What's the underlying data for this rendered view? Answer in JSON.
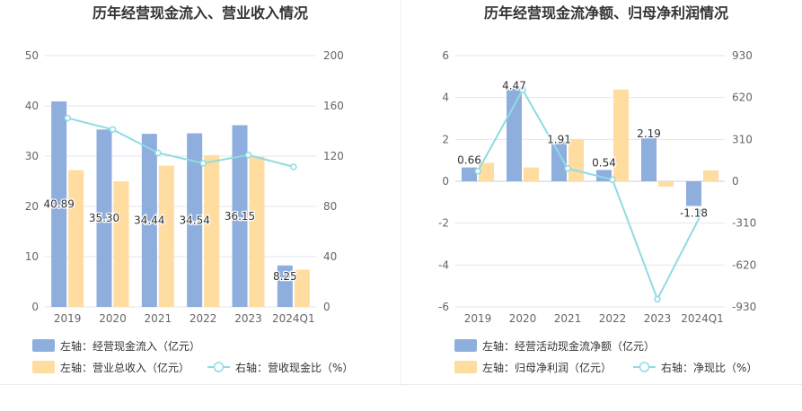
{
  "colors": {
    "bar_blue": "#8eaedd",
    "bar_orange": "#ffdca0",
    "line_teal": "#8fdbe3",
    "title_text": "#333333",
    "axis_text": "#666666",
    "grid": "#e3e6f0"
  },
  "chart_data": [
    {
      "type": "bar",
      "title": "历年经营现金流入、营业收入情况",
      "categories": [
        "2019",
        "2020",
        "2021",
        "2022",
        "2023",
        "2024Q1"
      ],
      "left_axis": {
        "ylim": [
          0,
          50
        ],
        "ticks": [
          0,
          10,
          20,
          30,
          40,
          50
        ]
      },
      "right_axis": {
        "ylim": [
          0,
          200
        ],
        "ticks": [
          0,
          40,
          80,
          120,
          160,
          200
        ]
      },
      "grid": true,
      "legend_position": "bottom-left",
      "series": [
        {
          "name": "左轴：经营现金流入（亿元）",
          "kind": "bar",
          "axis": "left",
          "values": [
            40.89,
            35.3,
            34.44,
            34.54,
            36.15,
            8.25
          ],
          "labels": [
            "40.89",
            "35.30",
            "34.44",
            "34.54",
            "36.15",
            "8.25"
          ]
        },
        {
          "name": "左轴：营业总收入（亿元）",
          "kind": "bar",
          "axis": "left",
          "values": [
            27.2,
            25.0,
            28.1,
            30.2,
            29.9,
            7.4
          ]
        },
        {
          "name": "右轴：营收现金比（%）",
          "kind": "line",
          "axis": "right",
          "values": [
            150.3,
            141.2,
            122.6,
            114.4,
            120.9,
            111.5
          ]
        }
      ]
    },
    {
      "type": "bar",
      "title": "历年经营现金流净额、归母净利润情况",
      "categories": [
        "2019",
        "2020",
        "2021",
        "2022",
        "2023",
        "2024Q1"
      ],
      "left_axis": {
        "ylim": [
          -6,
          6
        ],
        "ticks": [
          -6,
          -4,
          -2,
          0,
          2,
          4,
          6
        ]
      },
      "right_axis": {
        "ylim": [
          -930,
          930
        ],
        "ticks": [
          -930,
          -620,
          -310,
          0,
          310,
          620,
          930
        ],
        "tick_labels": [
          "-930",
          "-620",
          "-310",
          "0",
          "310",
          "620",
          "930"
        ]
      },
      "grid": true,
      "legend_position": "bottom-left",
      "series": [
        {
          "name": "左轴：经营活动现金流净额（亿元）",
          "kind": "bar",
          "axis": "left",
          "values": [
            0.66,
            4.47,
            1.91,
            0.54,
            2.19,
            -1.18
          ],
          "labels": [
            "0.66",
            "4.47",
            "1.91",
            "0.54",
            "2.19",
            "-1.18"
          ]
        },
        {
          "name": "左轴：归母净利润（亿元）",
          "kind": "bar",
          "axis": "left",
          "values": [
            0.88,
            0.66,
            2.0,
            4.38,
            -0.25,
            0.52
          ]
        },
        {
          "name": "右轴：净现比（%）",
          "kind": "line",
          "axis": "right",
          "values": [
            75,
            677,
            95,
            12,
            -873,
            -227
          ]
        }
      ]
    }
  ]
}
